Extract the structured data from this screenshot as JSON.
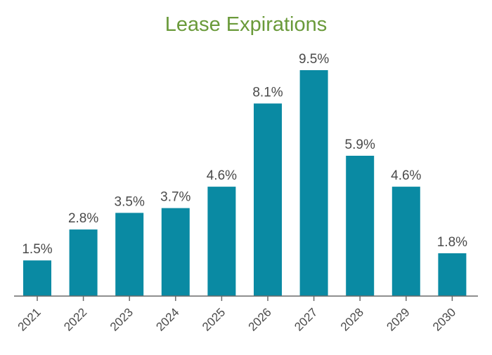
{
  "chart_data": {
    "type": "bar",
    "title": "Lease Expirations",
    "categories": [
      "2021",
      "2022",
      "2023",
      "2024",
      "2025",
      "2026",
      "2027",
      "2028",
      "2029",
      "2030"
    ],
    "values": [
      1.5,
      2.8,
      3.5,
      3.7,
      4.6,
      8.1,
      9.5,
      5.9,
      4.6,
      1.8
    ],
    "value_labels": [
      "1.5%",
      "2.8%",
      "3.5%",
      "3.7%",
      "4.6%",
      "8.1%",
      "9.5%",
      "5.9%",
      "4.6%",
      "1.8%"
    ],
    "xlabel": "",
    "ylabel": "",
    "ylim": [
      0,
      9.5
    ],
    "grid": false,
    "colors": {
      "bar": "#0a8aa3",
      "title": "#6a9a3a",
      "axis": "#6a6a6a"
    }
  }
}
